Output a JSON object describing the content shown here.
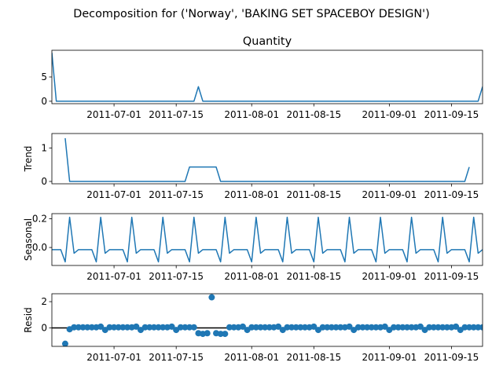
{
  "figure": {
    "suptitle": "Decomposition for ('Norway', 'BAKING SET SPACEBOY DESIGN')"
  },
  "colors": {
    "series": "#1f77b4",
    "axes": "#000000"
  },
  "x_axis": {
    "start": "2011-06-17",
    "end": "2011-09-22",
    "ticks": [
      "2011-07-01",
      "2011-07-15",
      "2011-08-01",
      "2011-08-15",
      "2011-09-01",
      "2011-09-15"
    ]
  },
  "chart_data": [
    {
      "type": "line",
      "title": "Quantity",
      "ylabel": "",
      "ylim": [
        -0.5,
        10.5
      ],
      "yticks": [
        0,
        5
      ],
      "x": [
        "2011-06-17",
        "2011-06-18",
        "2011-06-19",
        "2011-06-20",
        "2011-06-21",
        "2011-06-22",
        "2011-06-23",
        "2011-06-24",
        "2011-06-25",
        "2011-06-26",
        "2011-06-27",
        "2011-06-28",
        "2011-06-29",
        "2011-06-30",
        "2011-07-01",
        "2011-07-02",
        "2011-07-03",
        "2011-07-04",
        "2011-07-05",
        "2011-07-06",
        "2011-07-07",
        "2011-07-08",
        "2011-07-09",
        "2011-07-10",
        "2011-07-11",
        "2011-07-12",
        "2011-07-13",
        "2011-07-14",
        "2011-07-15",
        "2011-07-16",
        "2011-07-17",
        "2011-07-18",
        "2011-07-19",
        "2011-07-20",
        "2011-07-21",
        "2011-07-22",
        "2011-07-23",
        "2011-07-24",
        "2011-07-25",
        "2011-07-26",
        "2011-07-27",
        "2011-07-28",
        "2011-07-29",
        "2011-07-30",
        "2011-07-31",
        "2011-08-01",
        "2011-08-02",
        "2011-08-03",
        "2011-08-04",
        "2011-08-05",
        "2011-08-06",
        "2011-08-07",
        "2011-08-08",
        "2011-08-09",
        "2011-08-10",
        "2011-08-11",
        "2011-08-12",
        "2011-08-13",
        "2011-08-14",
        "2011-08-15",
        "2011-08-16",
        "2011-08-17",
        "2011-08-18",
        "2011-08-19",
        "2011-08-20",
        "2011-08-21",
        "2011-08-22",
        "2011-08-23",
        "2011-08-24",
        "2011-08-25",
        "2011-08-26",
        "2011-08-27",
        "2011-08-28",
        "2011-08-29",
        "2011-08-30",
        "2011-08-31",
        "2011-09-01",
        "2011-09-02",
        "2011-09-03",
        "2011-09-04",
        "2011-09-05",
        "2011-09-06",
        "2011-09-07",
        "2011-09-08",
        "2011-09-09",
        "2011-09-10",
        "2011-09-11",
        "2011-09-12",
        "2011-09-13",
        "2011-09-14",
        "2011-09-15",
        "2011-09-16",
        "2011-09-17",
        "2011-09-18",
        "2011-09-19",
        "2011-09-20",
        "2011-09-21",
        "2011-09-22"
      ],
      "values": [
        10,
        0,
        0,
        0,
        0,
        0,
        0,
        0,
        0,
        0,
        0,
        0,
        0,
        0,
        0,
        0,
        0,
        0,
        0,
        0,
        0,
        0,
        0,
        0,
        0,
        0,
        0,
        0,
        0,
        0,
        0,
        0,
        0,
        3,
        0,
        0,
        0,
        0,
        0,
        0,
        0,
        0,
        0,
        0,
        0,
        0,
        0,
        0,
        0,
        0,
        0,
        0,
        0,
        0,
        0,
        0,
        0,
        0,
        0,
        0,
        0,
        0,
        0,
        0,
        0,
        0,
        0,
        0,
        0,
        0,
        0,
        0,
        0,
        0,
        0,
        0,
        0,
        0,
        0,
        0,
        0,
        0,
        0,
        0,
        0,
        0,
        0,
        0,
        0,
        0,
        0,
        0,
        0,
        0,
        0,
        0,
        0,
        3
      ]
    },
    {
      "type": "line",
      "title": "",
      "ylabel": "Trend",
      "ylim": [
        -0.07,
        1.43
      ],
      "yticks": [
        0,
        1
      ],
      "x_start": "2011-06-20",
      "values": [
        1.29,
        0,
        0,
        0,
        0,
        0,
        0,
        0,
        0,
        0,
        0,
        0,
        0,
        0,
        0,
        0,
        0,
        0,
        0,
        0,
        0,
        0,
        0,
        0,
        0,
        0,
        0,
        0,
        0.43,
        0.43,
        0.43,
        0.43,
        0.43,
        0.43,
        0.43,
        0,
        0,
        0,
        0,
        0,
        0,
        0,
        0,
        0,
        0,
        0,
        0,
        0,
        0,
        0,
        0,
        0,
        0,
        0,
        0,
        0,
        0,
        0,
        0,
        0,
        0,
        0,
        0,
        0,
        0,
        0,
        0,
        0,
        0,
        0,
        0,
        0,
        0,
        0,
        0,
        0,
        0,
        0,
        0,
        0,
        0,
        0,
        0,
        0,
        0,
        0,
        0,
        0,
        0,
        0,
        0,
        0.43
      ]
    },
    {
      "type": "line",
      "title": "",
      "ylabel": "Seasonal",
      "ylim": [
        -0.125,
        0.235
      ],
      "yticks": [
        -0.0,
        0.2
      ],
      "ytick_labels": [
        "0.0",
        "0.2"
      ],
      "pattern": [
        -0.015,
        -0.015,
        -0.015,
        -0.1,
        0.21,
        -0.04,
        -0.015
      ],
      "pattern_start": "2011-06-17"
    },
    {
      "type": "scatter",
      "title": "",
      "ylabel": "Resid",
      "ylim": [
        -1.4,
        2.6
      ],
      "yticks": [
        0,
        2
      ],
      "zero_line": true,
      "x_start": "2011-06-20",
      "values": [
        -1.2,
        -0.1,
        0.05,
        0.05,
        0.05,
        0.05,
        0.05,
        0.05,
        0.1,
        -0.15,
        0.05,
        0.05,
        0.05,
        0.05,
        0.05,
        0.05,
        0.1,
        -0.15,
        0.05,
        0.05,
        0.05,
        0.05,
        0.05,
        0.05,
        0.1,
        -0.15,
        0.05,
        0.05,
        0.05,
        0.05,
        -0.4,
        -0.45,
        -0.4,
        2.33,
        -0.4,
        -0.45,
        -0.45,
        0.05,
        0.05,
        0.05,
        0.1,
        -0.15,
        0.05,
        0.05,
        0.05,
        0.05,
        0.05,
        0.05,
        0.1,
        -0.15,
        0.05,
        0.05,
        0.05,
        0.05,
        0.05,
        0.05,
        0.1,
        -0.15,
        0.05,
        0.05,
        0.05,
        0.05,
        0.05,
        0.05,
        0.1,
        -0.15,
        0.05,
        0.05,
        0.05,
        0.05,
        0.05,
        0.05,
        0.1,
        -0.15,
        0.05,
        0.05,
        0.05,
        0.05,
        0.05,
        0.05,
        0.1,
        -0.15,
        0.05,
        0.05,
        0.05,
        0.05,
        0.05,
        0.05,
        0.1,
        -0.15,
        0.05,
        0.05,
        0.05,
        0.05,
        0.05,
        0.05,
        -0.2,
        -0.35
      ]
    }
  ]
}
